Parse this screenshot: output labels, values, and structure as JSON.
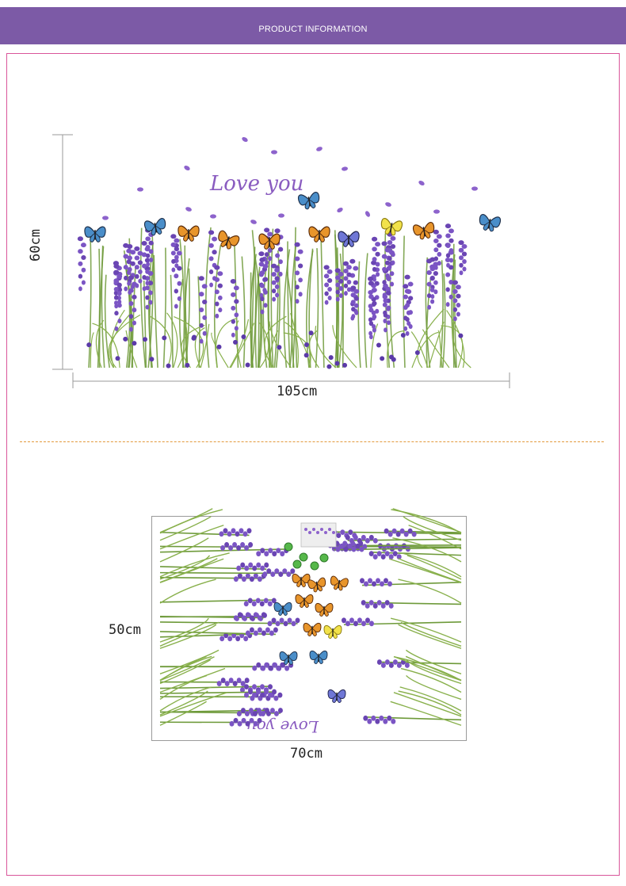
{
  "header": {
    "title": "PRODUCT INFORMATION"
  },
  "product1": {
    "height_label": "60cm",
    "width_label": "105cm",
    "decal_text": "Love you"
  },
  "product2": {
    "height_label": "50cm",
    "width_label": "70cm",
    "decal_text": "Love you"
  },
  "colors": {
    "header": "#7c5aa6",
    "frame": "#d9559a",
    "divider": "#e39a3c",
    "lavender": "#7b55c4",
    "stem": "#6e9a3a"
  }
}
